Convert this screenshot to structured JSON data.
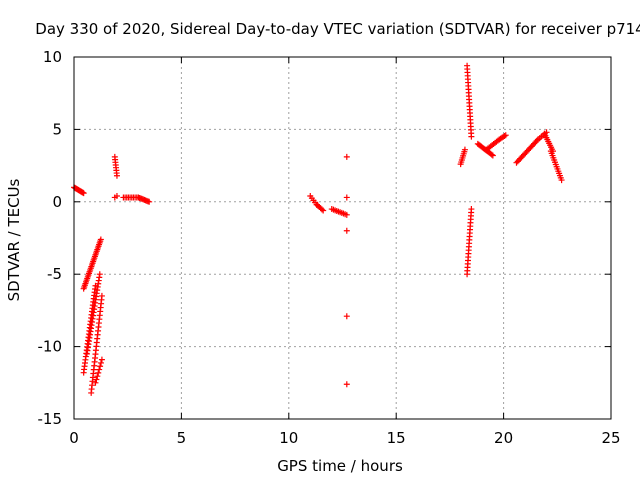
{
  "chart_data": {
    "type": "scatter",
    "title": "Day 330 of 2020, Sidereal Day-to-day VTEC variation (SDTVAR) for receiver p714",
    "xlabel": "GPS time / hours",
    "ylabel": "SDTVAR / TECUs",
    "xlim": [
      0,
      25
    ],
    "ylim": [
      -15,
      10
    ],
    "xticks": [
      0,
      5,
      10,
      15,
      20,
      25
    ],
    "yticks": [
      -15,
      -10,
      -5,
      0,
      5,
      10
    ],
    "xtick_labels": [
      "0",
      "5",
      "10",
      "15",
      "20",
      "25"
    ],
    "ytick_labels": [
      "-15",
      "-10",
      "-5",
      "0",
      "5",
      "10"
    ],
    "grid": true,
    "marker": "+",
    "color": "#ff0000",
    "segments": [
      {
        "x0": 0.0,
        "x1": 0.45,
        "y0": 1.0,
        "y1": 0.6,
        "n": 14
      },
      {
        "x0": 0.45,
        "x1": 1.25,
        "y0": -6.0,
        "y1": -2.6,
        "n": 30
      },
      {
        "x0": 0.45,
        "x1": 1.0,
        "y0": -11.8,
        "y1": -5.8,
        "n": 28
      },
      {
        "x0": 0.6,
        "x1": 1.2,
        "y0": -10.5,
        "y1": -5.0,
        "n": 26
      },
      {
        "x0": 0.8,
        "x1": 1.3,
        "y0": -13.2,
        "y1": -6.5,
        "n": 26
      },
      {
        "x0": 1.0,
        "x1": 1.3,
        "y0": -12.5,
        "y1": -10.9,
        "n": 8
      },
      {
        "x0": 1.9,
        "x1": 2.0,
        "y0": 3.1,
        "y1": 1.8,
        "n": 8
      },
      {
        "x0": 1.9,
        "x1": 2.0,
        "y0": 0.3,
        "y1": 0.4,
        "n": 2
      },
      {
        "x0": 2.3,
        "x1": 3.0,
        "y0": 0.3,
        "y1": 0.3,
        "n": 10
      },
      {
        "x0": 3.0,
        "x1": 3.5,
        "y0": 0.3,
        "y1": 0.0,
        "n": 10
      },
      {
        "x0": 11.0,
        "x1": 11.3,
        "y0": 0.4,
        "y1": -0.2,
        "n": 5
      },
      {
        "x0": 11.3,
        "x1": 11.6,
        "y0": -0.2,
        "y1": -0.6,
        "n": 6
      },
      {
        "x0": 12.0,
        "x1": 12.7,
        "y0": -0.5,
        "y1": -0.9,
        "n": 10
      },
      {
        "x0": 18.0,
        "x1": 18.2,
        "y0": 2.6,
        "y1": 3.6,
        "n": 8
      },
      {
        "x0": 18.3,
        "x1": 18.5,
        "y0": 9.4,
        "y1": 4.5,
        "n": 22
      },
      {
        "x0": 18.3,
        "x1": 18.5,
        "y0": -5.0,
        "y1": -0.5,
        "n": 20
      },
      {
        "x0": 18.8,
        "x1": 19.5,
        "y0": 4.0,
        "y1": 3.2,
        "n": 14
      },
      {
        "x0": 19.2,
        "x1": 19.8,
        "y0": 3.6,
        "y1": 4.3,
        "n": 10
      },
      {
        "x0": 19.8,
        "x1": 20.1,
        "y0": 4.3,
        "y1": 4.6,
        "n": 6
      },
      {
        "x0": 20.6,
        "x1": 21.6,
        "y0": 2.7,
        "y1": 4.3,
        "n": 18
      },
      {
        "x0": 21.6,
        "x1": 22.0,
        "y0": 4.3,
        "y1": 4.8,
        "n": 6
      },
      {
        "x0": 21.9,
        "x1": 22.3,
        "y0": 4.7,
        "y1": 3.5,
        "n": 10
      },
      {
        "x0": 22.2,
        "x1": 22.7,
        "y0": 3.5,
        "y1": 1.5,
        "n": 14
      }
    ],
    "points": [
      {
        "x": 12.7,
        "y": 3.1
      },
      {
        "x": 12.7,
        "y": 0.3
      },
      {
        "x": 12.7,
        "y": -2.0
      },
      {
        "x": 12.7,
        "y": -7.9
      },
      {
        "x": 12.7,
        "y": -12.6
      }
    ]
  }
}
